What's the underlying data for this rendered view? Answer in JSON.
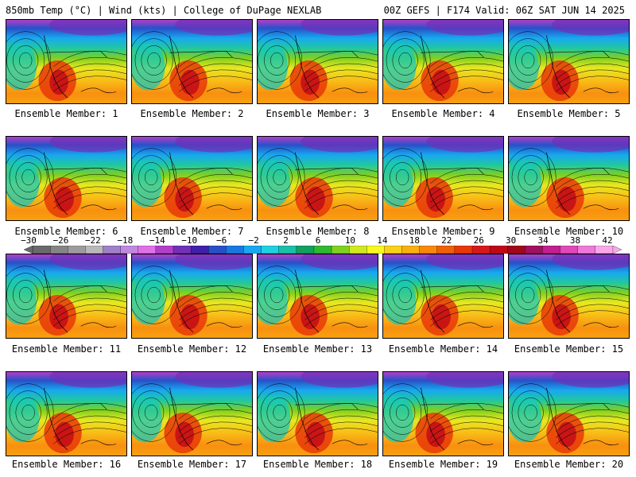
{
  "header": {
    "left": "850mb Temp (°C) | Wind (kts) | College of DuPage NEXLAB",
    "right": "00Z GEFS | F174 Valid: 06Z SAT JUN 14 2025"
  },
  "panels": [
    {
      "label": "Ensemble Member: 1"
    },
    {
      "label": "Ensemble Member: 2"
    },
    {
      "label": "Ensemble Member: 3"
    },
    {
      "label": "Ensemble Member: 4"
    },
    {
      "label": "Ensemble Member: 5"
    },
    {
      "label": "Ensemble Member: 6"
    },
    {
      "label": "Ensemble Member: 7"
    },
    {
      "label": "Ensemble Member: 8"
    },
    {
      "label": "Ensemble Member: 9"
    },
    {
      "label": "Ensemble Member: 10"
    },
    {
      "label": "Ensemble Member: 11"
    },
    {
      "label": "Ensemble Member: 12"
    },
    {
      "label": "Ensemble Member: 13"
    },
    {
      "label": "Ensemble Member: 14"
    },
    {
      "label": "Ensemble Member: 15"
    },
    {
      "label": "Ensemble Member: 16"
    },
    {
      "label": "Ensemble Member: 17"
    },
    {
      "label": "Ensemble Member: 18"
    },
    {
      "label": "Ensemble Member: 19"
    },
    {
      "label": "Ensemble Member: 20"
    }
  ],
  "colorbar": {
    "tick_labels": [
      "−30",
      "−26",
      "−22",
      "−18",
      "−14",
      "−10",
      "−6",
      "−2",
      "2",
      "6",
      "10",
      "14",
      "18",
      "22",
      "26",
      "30",
      "34",
      "38",
      "42"
    ],
    "colors": [
      "#6a6a6a",
      "#858585",
      "#9c9c9c",
      "#b8b8b8",
      "#a080c8",
      "#c088e0",
      "#e070e8",
      "#b040c8",
      "#7030b8",
      "#4020a8",
      "#2850c8",
      "#1878e0",
      "#18a8f0",
      "#20d0e0",
      "#18c0a8",
      "#10a060",
      "#30b830",
      "#80d020",
      "#d0e820",
      "#f8f820",
      "#f8d018",
      "#f8b010",
      "#f88808",
      "#f06008",
      "#e83808",
      "#d81818",
      "#c00818",
      "#a00818",
      "#a01060",
      "#c02090",
      "#e048b8",
      "#f078d8",
      "#f8a8e8"
    ]
  }
}
